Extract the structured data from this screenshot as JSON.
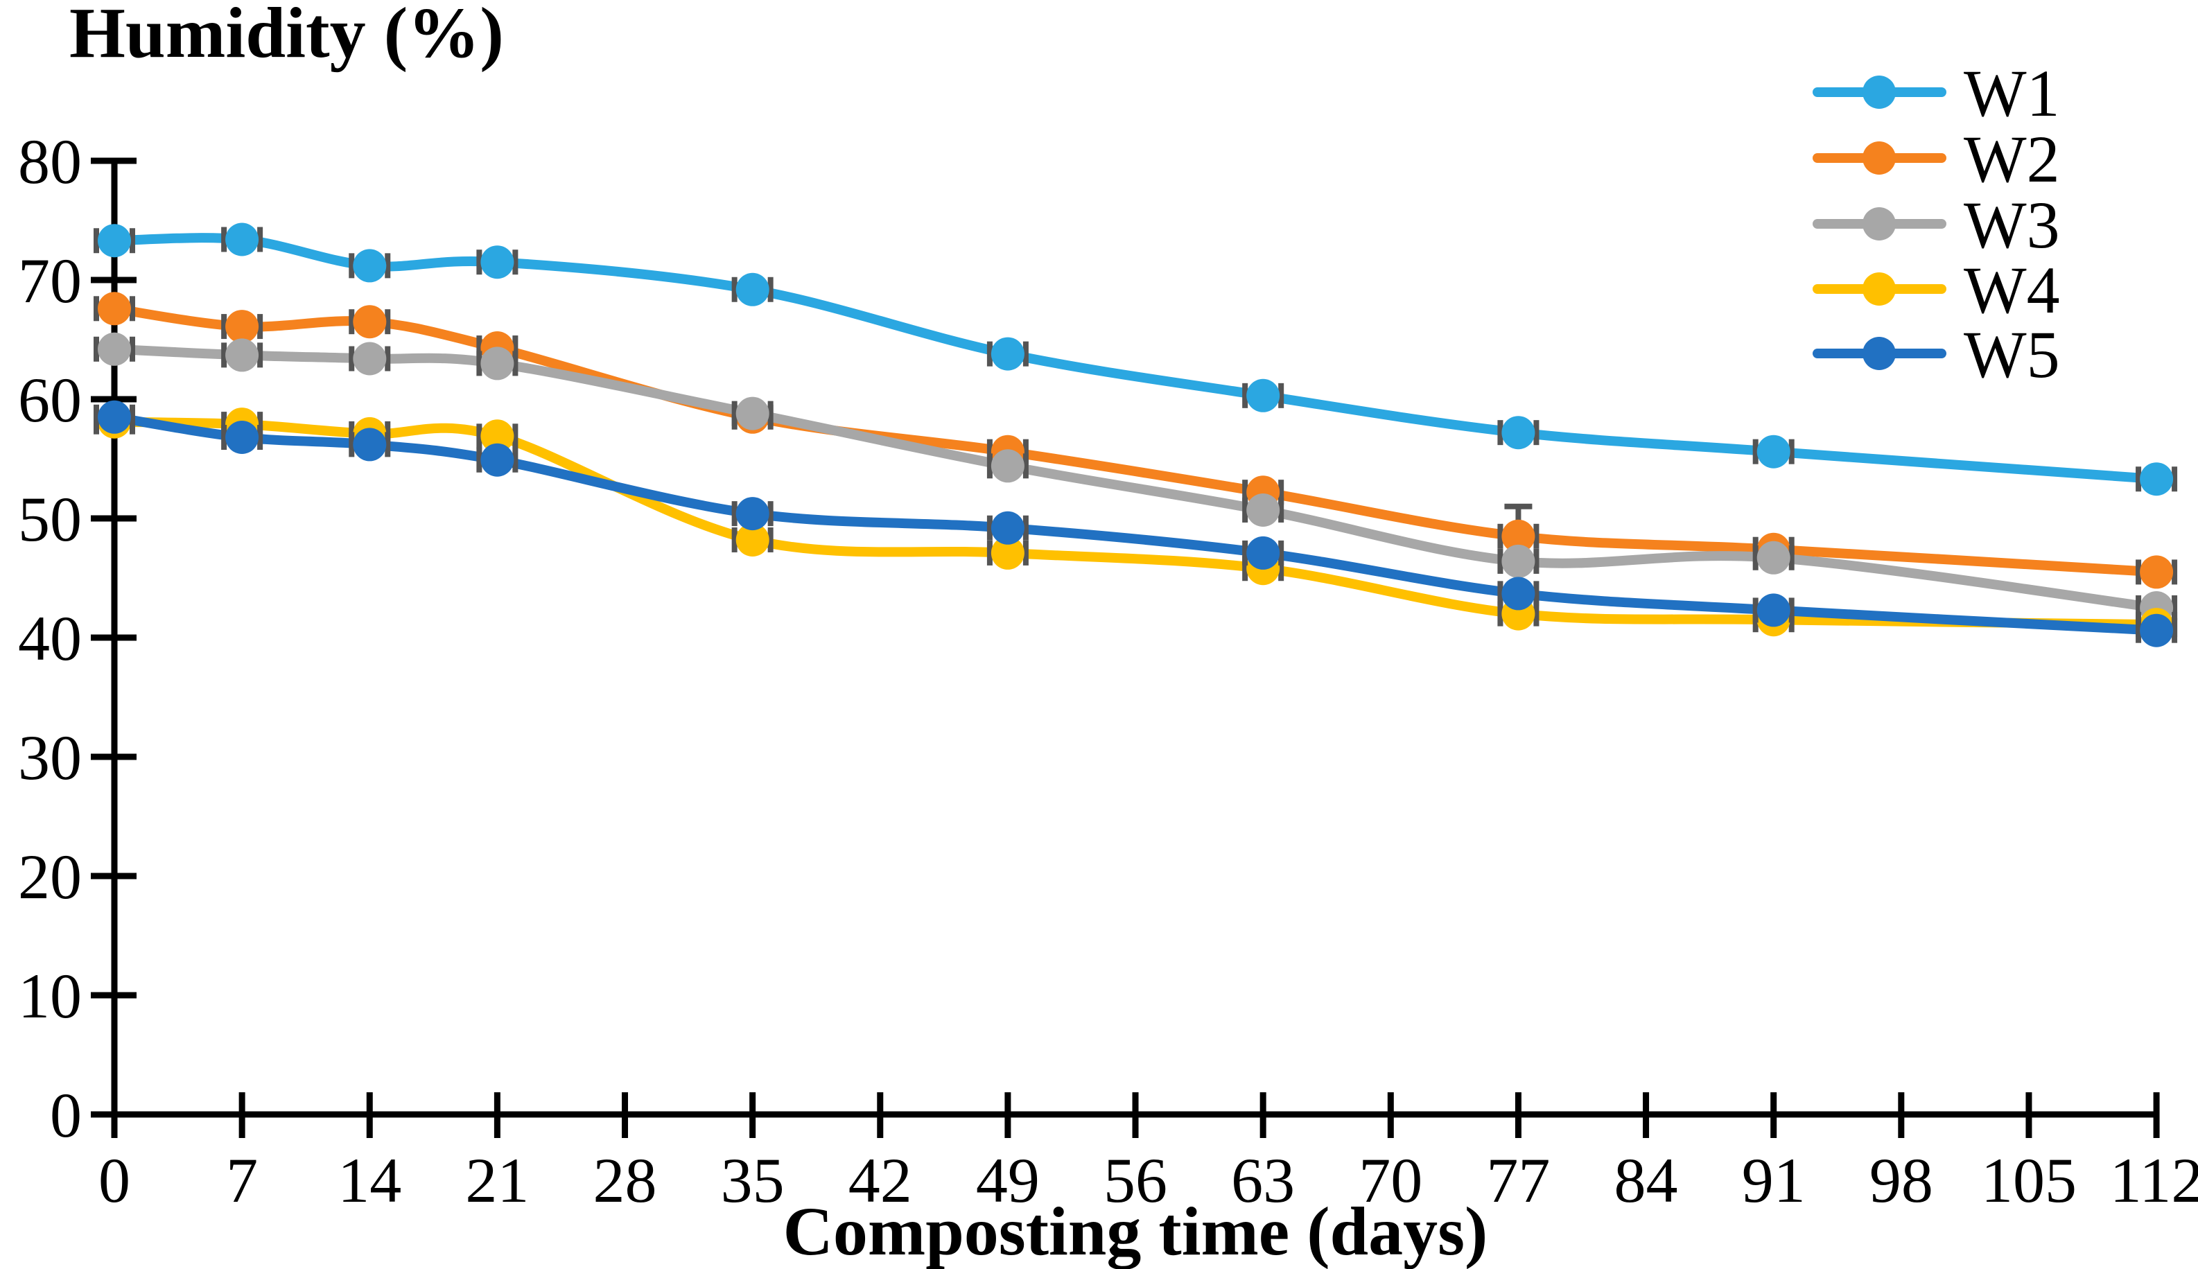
{
  "page": {
    "background": "#FFFFFF"
  },
  "chart_data": {
    "type": "line",
    "title": "Humidity (%)",
    "xlabel": "Composting time (days)",
    "ylabel": "",
    "grid": false,
    "smooth": true,
    "marker": "circle",
    "legend_position": "upper-right",
    "xlim": [
      0,
      112
    ],
    "ylim": [
      0,
      80
    ],
    "xticks": [
      0,
      7,
      14,
      21,
      28,
      35,
      42,
      49,
      56,
      63,
      70,
      77,
      84,
      91,
      98,
      105,
      112
    ],
    "yticks": [
      0,
      10,
      20,
      30,
      40,
      50,
      60,
      70,
      80
    ],
    "x_days": [
      0,
      7,
      14,
      21,
      35,
      49,
      63,
      77,
      91,
      112
    ],
    "series": [
      {
        "name": "W1",
        "color": "#2BA7E1",
        "values": [
          73.3,
          73.4,
          71.2,
          71.5,
          69.2,
          63.8,
          60.3,
          57.2,
          55.6,
          53.3
        ]
      },
      {
        "name": "W2",
        "color": "#F5821E",
        "values": [
          67.6,
          66.1,
          66.5,
          64.3,
          58.5,
          55.6,
          52.2,
          48.5,
          47.4,
          45.5
        ]
      },
      {
        "name": "W3",
        "color": "#A7A7A7",
        "values": [
          64.2,
          63.7,
          63.4,
          63.0,
          58.8,
          54.4,
          50.7,
          46.4,
          46.7,
          42.5
        ]
      },
      {
        "name": "W4",
        "color": "#FFC000",
        "values": [
          58.1,
          57.9,
          57.1,
          56.9,
          48.2,
          47.1,
          45.8,
          42.0,
          41.5,
          41.1
        ]
      },
      {
        "name": "W5",
        "color": "#2171C2",
        "values": [
          58.5,
          56.8,
          56.2,
          54.9,
          50.4,
          49.2,
          47.1,
          43.7,
          42.3,
          40.6
        ]
      }
    ],
    "error_bars": {
      "color": "#545454",
      "cap_half_offset": 26,
      "cap_height": 36,
      "cap_width": 8,
      "special_y_errors": [
        {
          "series": "W2",
          "day": 77,
          "top_value": 51.0,
          "cap_half_width": 20
        }
      ]
    }
  }
}
